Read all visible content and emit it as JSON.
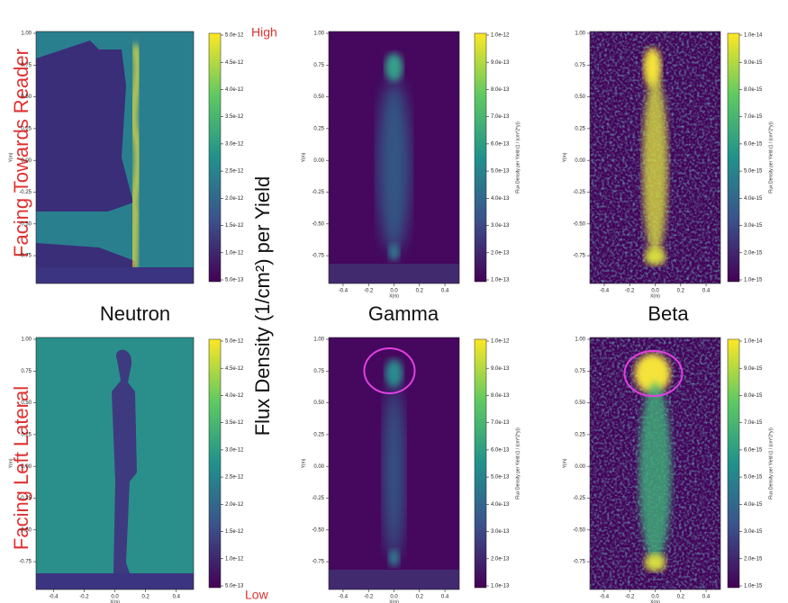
{
  "row_labels": [
    "Facing Towards Reader",
    "Facing Left Lateral"
  ],
  "column_labels": [
    "Neutron",
    "Gamma",
    "Beta"
  ],
  "colorbar_title": "Flux Density (1/cm²) per Yield",
  "scale_labels": {
    "high": "High",
    "low": "Low"
  },
  "axis_labels": {
    "x": "X(m)",
    "y": "Y(m)",
    "colorbar": "Flux Density per Yield (1 / (cm^2*y))"
  },
  "panels": [
    {
      "kind": "neutron",
      "yticks": [
        "1.00",
        "0.75",
        "0.50",
        "0.25",
        "0.00",
        "-0.25",
        "-0.50",
        "-0.75"
      ],
      "colorbar_ticks": [
        "5.0e-12",
        "4.5e-12",
        "4.0e-12",
        "3.5e-12",
        "3.0e-12",
        "2.5e-12",
        "2.0e-12",
        "1.5e-12",
        "1.0e-12",
        "5.0e-13"
      ]
    },
    {
      "kind": "gamma",
      "yticks": [
        "1.00",
        "0.75",
        "0.50",
        "0.25",
        "0.00",
        "-0.25",
        "-0.50",
        "-0.75"
      ],
      "xticks": [
        "-0.4",
        "-0.2",
        "0.0",
        "0.2",
        "0.4"
      ],
      "colorbar_ticks": [
        "1.0e-12",
        "9.0e-13",
        "8.0e-13",
        "7.0e-13",
        "6.0e-13",
        "5.0e-13",
        "4.0e-13",
        "3.0e-13",
        "2.0e-13",
        "1.0e-13"
      ]
    },
    {
      "kind": "beta",
      "yticks": [
        "1.00",
        "0.75",
        "0.50",
        "0.25",
        "0.00",
        "-0.25",
        "-0.50",
        "-0.75"
      ],
      "xticks": [
        "-0.4",
        "-0.2",
        "0.0",
        "0.2",
        "0.4"
      ],
      "colorbar_ticks": [
        "1.0e-14",
        "9.0e-15",
        "8.0e-15",
        "7.0e-15",
        "6.0e-15",
        "5.0e-15",
        "4.0e-15",
        "3.0e-15",
        "2.0e-15",
        "1.0e-15"
      ]
    },
    {
      "kind": "neutron-lateral",
      "yticks": [
        "1.00",
        "0.75",
        "0.50",
        "0.25",
        "0.00",
        "-0.25",
        "-0.50",
        "-0.75"
      ],
      "xticks": [
        "-0.4",
        "-0.2",
        "0.0",
        "0.2",
        "0.4"
      ],
      "colorbar_ticks": [
        "5.0e-12",
        "4.5e-12",
        "4.0e-12",
        "3.5e-12",
        "3.0e-12",
        "2.5e-12",
        "2.0e-12",
        "1.5e-12",
        "1.0e-12",
        "5.0e-13"
      ]
    },
    {
      "kind": "gamma-lateral",
      "yticks": [
        "1.00",
        "0.75",
        "0.50",
        "0.25",
        "0.00",
        "-0.25",
        "-0.50",
        "-0.75"
      ],
      "xticks": [
        "-0.4",
        "-0.2",
        "0.0",
        "0.2",
        "0.4"
      ],
      "colorbar_ticks": [
        "1.0e-12",
        "9.0e-13",
        "8.0e-13",
        "7.0e-13",
        "6.0e-13",
        "5.0e-13",
        "4.0e-13",
        "3.0e-13",
        "2.0e-13",
        "1.0e-13"
      ]
    },
    {
      "kind": "beta-lateral",
      "yticks": [
        "1.00",
        "0.75",
        "0.50",
        "0.25",
        "0.00",
        "-0.25",
        "-0.50",
        "-0.75"
      ],
      "xticks": [
        "-0.4",
        "-0.2",
        "0.0",
        "0.2",
        "0.4"
      ],
      "colorbar_ticks": [
        "1.0e-14",
        "9.0e-15",
        "8.0e-15",
        "7.0e-15",
        "6.0e-15",
        "5.0e-15",
        "4.0e-15",
        "3.0e-15",
        "2.0e-15",
        "1.0e-15"
      ]
    }
  ]
}
